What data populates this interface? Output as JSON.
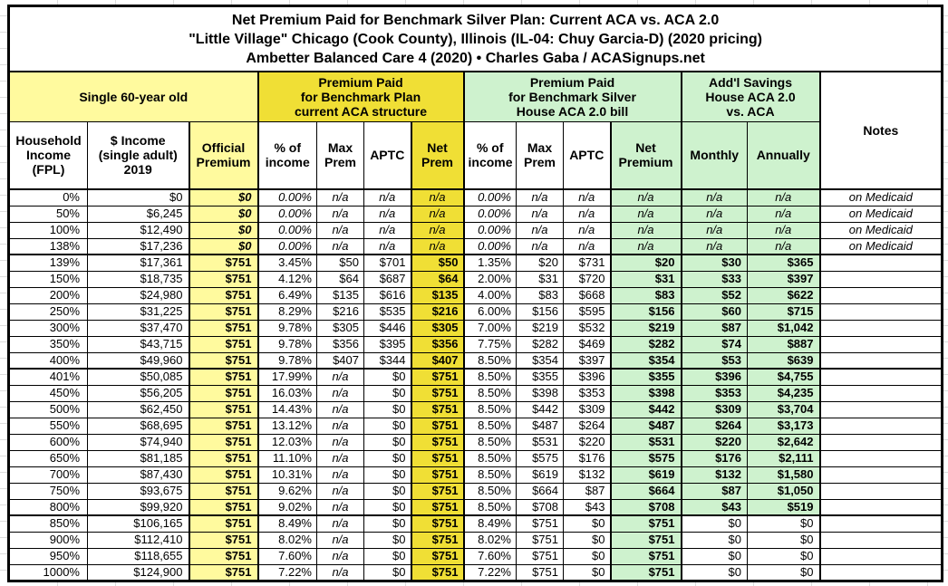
{
  "title": {
    "line1": "Net Premium Paid for Benchmark Silver Plan: Current ACA vs. ACA 2.0",
    "line2": "\"Little Village\" Chicago (Cook County), Illinois (IL-04: Chuy Garcia-D) (2020 pricing)",
    "line3": "Ambetter Balanced Care 4 (2020) • Charles Gaba / ACASignups.net"
  },
  "header": {
    "person": "Single 60-year old",
    "group_aca": "Premium Paid\nfor Benchmark Plan\ncurrent ACA structure",
    "group_aca2": "Premium Paid\nfor Benchmark Silver\nHouse ACA 2.0 bill",
    "group_savings": "Add'l Savings\nHouse ACA 2.0\nvs. ACA",
    "notes": "Notes",
    "cols": {
      "fpl": "Household\nIncome\n(FPL)",
      "income": "$ Income\n(single adult)\n2019",
      "official": "Official\nPremium",
      "pct": "% of\nincome",
      "max": "Max\nPrem",
      "aptc": "APTC",
      "net_short": "Net\nPrem",
      "net_long": "Net\nPremium",
      "monthly": "Monthly",
      "annually": "Annually"
    }
  },
  "colors": {
    "pale_yellow": "#FFFA9E",
    "bright_yellow": "#F0DF35",
    "pale_green": "#CEF2CE",
    "border": "#000000"
  },
  "rows": [
    {
      "fpl": "0%",
      "income": "$0",
      "official": "$0",
      "aca_pct": "0.00%",
      "aca_max": "n/a",
      "aca_aptc": "n/a",
      "aca_net": "n/a",
      "a2_pct": "0.00%",
      "a2_max": "n/a",
      "a2_aptc": "n/a",
      "a2_net": "n/a",
      "monthly": "n/a",
      "annually": "n/a",
      "note": "on Medicaid"
    },
    {
      "fpl": "50%",
      "income": "$6,245",
      "official": "$0",
      "aca_pct": "0.00%",
      "aca_max": "n/a",
      "aca_aptc": "n/a",
      "aca_net": "n/a",
      "a2_pct": "0.00%",
      "a2_max": "n/a",
      "a2_aptc": "n/a",
      "a2_net": "n/a",
      "monthly": "n/a",
      "annually": "n/a",
      "note": "on Medicaid"
    },
    {
      "fpl": "100%",
      "income": "$12,490",
      "official": "$0",
      "aca_pct": "0.00%",
      "aca_max": "n/a",
      "aca_aptc": "n/a",
      "aca_net": "n/a",
      "a2_pct": "0.00%",
      "a2_max": "n/a",
      "a2_aptc": "n/a",
      "a2_net": "n/a",
      "monthly": "n/a",
      "annually": "n/a",
      "note": "on Medicaid"
    },
    {
      "fpl": "138%",
      "income": "$17,236",
      "official": "$0",
      "aca_pct": "0.00%",
      "aca_max": "n/a",
      "aca_aptc": "n/a",
      "aca_net": "n/a",
      "a2_pct": "0.00%",
      "a2_max": "n/a",
      "a2_aptc": "n/a",
      "a2_net": "n/a",
      "monthly": "n/a",
      "annually": "n/a",
      "note": "on Medicaid"
    },
    {
      "fpl": "139%",
      "income": "$17,361",
      "official": "$751",
      "aca_pct": "3.45%",
      "aca_max": "$50",
      "aca_aptc": "$701",
      "aca_net": "$50",
      "a2_pct": "1.35%",
      "a2_max": "$20",
      "a2_aptc": "$731",
      "a2_net": "$20",
      "monthly": "$30",
      "annually": "$365",
      "note": "",
      "divider_above": true
    },
    {
      "fpl": "150%",
      "income": "$18,735",
      "official": "$751",
      "aca_pct": "4.12%",
      "aca_max": "$64",
      "aca_aptc": "$687",
      "aca_net": "$64",
      "a2_pct": "2.00%",
      "a2_max": "$31",
      "a2_aptc": "$720",
      "a2_net": "$31",
      "monthly": "$33",
      "annually": "$397",
      "note": ""
    },
    {
      "fpl": "200%",
      "income": "$24,980",
      "official": "$751",
      "aca_pct": "6.49%",
      "aca_max": "$135",
      "aca_aptc": "$616",
      "aca_net": "$135",
      "a2_pct": "4.00%",
      "a2_max": "$83",
      "a2_aptc": "$668",
      "a2_net": "$83",
      "monthly": "$52",
      "annually": "$622",
      "note": ""
    },
    {
      "fpl": "250%",
      "income": "$31,225",
      "official": "$751",
      "aca_pct": "8.29%",
      "aca_max": "$216",
      "aca_aptc": "$535",
      "aca_net": "$216",
      "a2_pct": "6.00%",
      "a2_max": "$156",
      "a2_aptc": "$595",
      "a2_net": "$156",
      "monthly": "$60",
      "annually": "$715",
      "note": ""
    },
    {
      "fpl": "300%",
      "income": "$37,470",
      "official": "$751",
      "aca_pct": "9.78%",
      "aca_max": "$305",
      "aca_aptc": "$446",
      "aca_net": "$305",
      "a2_pct": "7.00%",
      "a2_max": "$219",
      "a2_aptc": "$532",
      "a2_net": "$219",
      "monthly": "$87",
      "annually": "$1,042",
      "note": ""
    },
    {
      "fpl": "350%",
      "income": "$43,715",
      "official": "$751",
      "aca_pct": "9.78%",
      "aca_max": "$356",
      "aca_aptc": "$395",
      "aca_net": "$356",
      "a2_pct": "7.75%",
      "a2_max": "$282",
      "a2_aptc": "$469",
      "a2_net": "$282",
      "monthly": "$74",
      "annually": "$887",
      "note": ""
    },
    {
      "fpl": "400%",
      "income": "$49,960",
      "official": "$751",
      "aca_pct": "9.78%",
      "aca_max": "$407",
      "aca_aptc": "$344",
      "aca_net": "$407",
      "a2_pct": "8.50%",
      "a2_max": "$354",
      "a2_aptc": "$397",
      "a2_net": "$354",
      "monthly": "$53",
      "annually": "$639",
      "note": ""
    },
    {
      "fpl": "401%",
      "income": "$50,085",
      "official": "$751",
      "aca_pct": "17.99%",
      "aca_max": "n/a",
      "aca_aptc": "$0",
      "aca_net": "$751",
      "a2_pct": "8.50%",
      "a2_max": "$355",
      "a2_aptc": "$396",
      "a2_net": "$355",
      "monthly": "$396",
      "annually": "$4,755",
      "note": "",
      "divider_above": true
    },
    {
      "fpl": "450%",
      "income": "$56,205",
      "official": "$751",
      "aca_pct": "16.03%",
      "aca_max": "n/a",
      "aca_aptc": "$0",
      "aca_net": "$751",
      "a2_pct": "8.50%",
      "a2_max": "$398",
      "a2_aptc": "$353",
      "a2_net": "$398",
      "monthly": "$353",
      "annually": "$4,235",
      "note": ""
    },
    {
      "fpl": "500%",
      "income": "$62,450",
      "official": "$751",
      "aca_pct": "14.43%",
      "aca_max": "n/a",
      "aca_aptc": "$0",
      "aca_net": "$751",
      "a2_pct": "8.50%",
      "a2_max": "$442",
      "a2_aptc": "$309",
      "a2_net": "$442",
      "monthly": "$309",
      "annually": "$3,704",
      "note": ""
    },
    {
      "fpl": "550%",
      "income": "$68,695",
      "official": "$751",
      "aca_pct": "13.12%",
      "aca_max": "n/a",
      "aca_aptc": "$0",
      "aca_net": "$751",
      "a2_pct": "8.50%",
      "a2_max": "$487",
      "a2_aptc": "$264",
      "a2_net": "$487",
      "monthly": "$264",
      "annually": "$3,173",
      "note": ""
    },
    {
      "fpl": "600%",
      "income": "$74,940",
      "official": "$751",
      "aca_pct": "12.03%",
      "aca_max": "n/a",
      "aca_aptc": "$0",
      "aca_net": "$751",
      "a2_pct": "8.50%",
      "a2_max": "$531",
      "a2_aptc": "$220",
      "a2_net": "$531",
      "monthly": "$220",
      "annually": "$2,642",
      "note": ""
    },
    {
      "fpl": "650%",
      "income": "$81,185",
      "official": "$751",
      "aca_pct": "11.10%",
      "aca_max": "n/a",
      "aca_aptc": "$0",
      "aca_net": "$751",
      "a2_pct": "8.50%",
      "a2_max": "$575",
      "a2_aptc": "$176",
      "a2_net": "$575",
      "monthly": "$176",
      "annually": "$2,111",
      "note": ""
    },
    {
      "fpl": "700%",
      "income": "$87,430",
      "official": "$751",
      "aca_pct": "10.31%",
      "aca_max": "n/a",
      "aca_aptc": "$0",
      "aca_net": "$751",
      "a2_pct": "8.50%",
      "a2_max": "$619",
      "a2_aptc": "$132",
      "a2_net": "$619",
      "monthly": "$132",
      "annually": "$1,580",
      "note": ""
    },
    {
      "fpl": "750%",
      "income": "$93,675",
      "official": "$751",
      "aca_pct": "9.62%",
      "aca_max": "n/a",
      "aca_aptc": "$0",
      "aca_net": "$751",
      "a2_pct": "8.50%",
      "a2_max": "$664",
      "a2_aptc": "$87",
      "a2_net": "$664",
      "monthly": "$87",
      "annually": "$1,050",
      "note": ""
    },
    {
      "fpl": "800%",
      "income": "$99,920",
      "official": "$751",
      "aca_pct": "9.02%",
      "aca_max": "n/a",
      "aca_aptc": "$0",
      "aca_net": "$751",
      "a2_pct": "8.50%",
      "a2_max": "$708",
      "a2_aptc": "$43",
      "a2_net": "$708",
      "monthly": "$43",
      "annually": "$519",
      "note": ""
    },
    {
      "fpl": "850%",
      "income": "$106,165",
      "official": "$751",
      "aca_pct": "8.49%",
      "aca_max": "n/a",
      "aca_aptc": "$0",
      "aca_net": "$751",
      "a2_pct": "8.49%",
      "a2_max": "$751",
      "a2_aptc": "$0",
      "a2_net": "$751",
      "monthly": "$0",
      "annually": "$0",
      "note": "",
      "divider_above": true
    },
    {
      "fpl": "900%",
      "income": "$112,410",
      "official": "$751",
      "aca_pct": "8.02%",
      "aca_max": "n/a",
      "aca_aptc": "$0",
      "aca_net": "$751",
      "a2_pct": "8.02%",
      "a2_max": "$751",
      "a2_aptc": "$0",
      "a2_net": "$751",
      "monthly": "$0",
      "annually": "$0",
      "note": ""
    },
    {
      "fpl": "950%",
      "income": "$118,655",
      "official": "$751",
      "aca_pct": "7.60%",
      "aca_max": "n/a",
      "aca_aptc": "$0",
      "aca_net": "$751",
      "a2_pct": "7.60%",
      "a2_max": "$751",
      "a2_aptc": "$0",
      "a2_net": "$751",
      "monthly": "$0",
      "annually": "$0",
      "note": ""
    },
    {
      "fpl": "1000%",
      "income": "$124,900",
      "official": "$751",
      "aca_pct": "7.22%",
      "aca_max": "n/a",
      "aca_aptc": "$0",
      "aca_net": "$751",
      "a2_pct": "7.22%",
      "a2_max": "$751",
      "a2_aptc": "$0",
      "a2_net": "$751",
      "monthly": "$0",
      "annually": "$0",
      "note": ""
    }
  ]
}
